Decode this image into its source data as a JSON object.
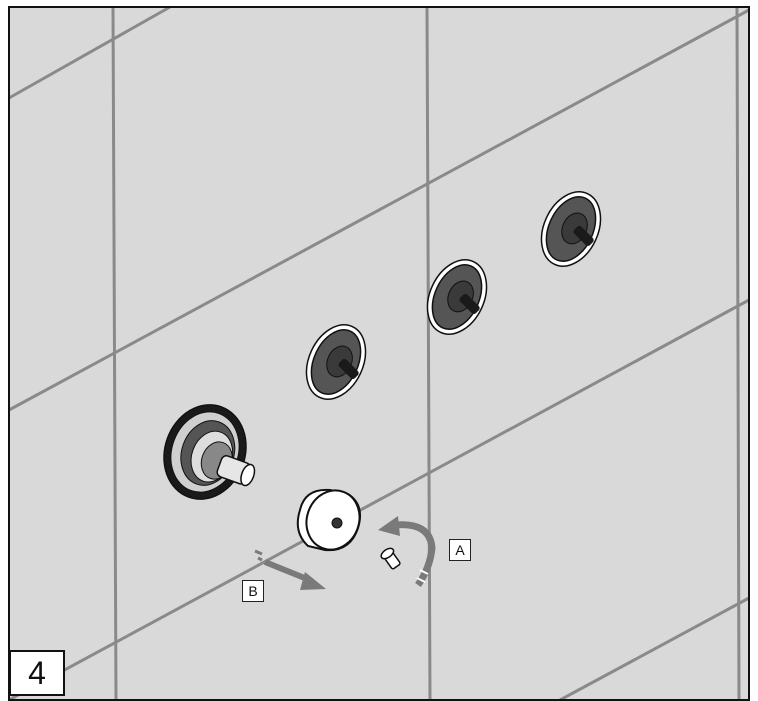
{
  "step": {
    "number": "4"
  },
  "callouts": {
    "a": "A",
    "b": "B"
  },
  "colors": {
    "wall": "#d9d9d9",
    "grout": "#8a8a8a",
    "valve_dark": "#555555",
    "valve_black": "#1a1a1a",
    "arrow": "#7a7a7a",
    "outline": "#111111"
  },
  "icons": {
    "valves": [
      "valve-stem-icon",
      "valve-stem-icon",
      "valve-stem-icon"
    ],
    "mixer": "diverter-cartridge-icon",
    "knob": "handle-knob-icon",
    "screw": "set-screw-icon",
    "rotate": "rotate-arrow-icon",
    "pull": "pull-arrow-icon"
  }
}
